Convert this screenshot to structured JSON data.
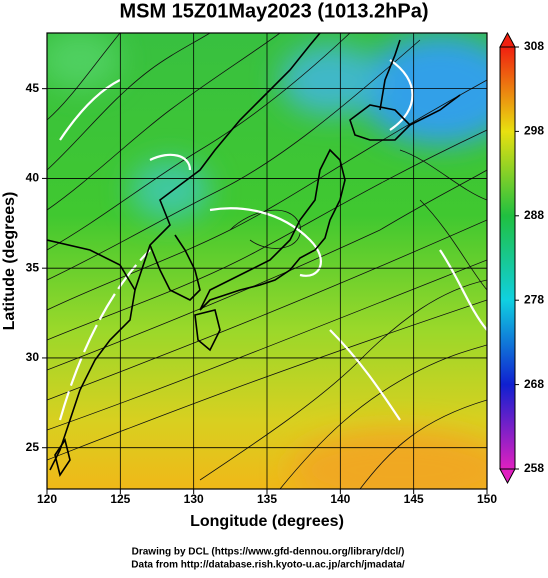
{
  "title": "MSM 15Z01May2023 (1013.2hPa)",
  "x_axis": {
    "label": "Longitude (degrees)",
    "xlim": [
      120,
      150
    ],
    "ticks": [
      120,
      125,
      130,
      135,
      140,
      145,
      150
    ]
  },
  "y_axis": {
    "label": "Latitude  (degrees)",
    "ylim": [
      22.7,
      48.1
    ],
    "ticks": [
      25,
      30,
      35,
      40,
      45
    ]
  },
  "colorbar": {
    "clim": [
      258,
      308
    ],
    "ticks": [
      258,
      268,
      278,
      288,
      298,
      308
    ]
  },
  "credits": [
    "Drawing by DCL (https://www.gfd-dennou.org/library/dcl/)",
    "Data from http://database.rish.kyoto-u.ac.jp/arch/jmadata/"
  ]
}
